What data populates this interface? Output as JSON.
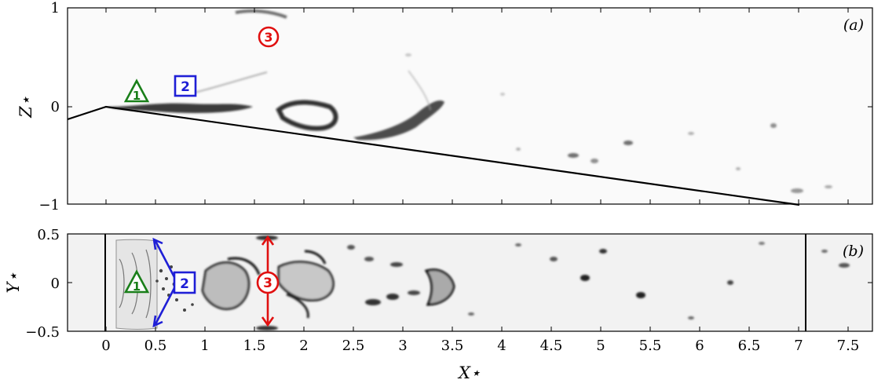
{
  "panel_a": {
    "tag": "(a)",
    "ylabel": "Z⋆",
    "yticks": [
      "1",
      "0",
      "−1"
    ]
  },
  "panel_b": {
    "tag": "(b)",
    "ylabel": "Y⋆",
    "yticks": [
      "0.5",
      "0",
      "−0.5"
    ]
  },
  "xlabel": "X⋆",
  "xticks": [
    "0",
    "0.5",
    "1",
    "1.5",
    "2",
    "2.5",
    "3",
    "3.5",
    "4",
    "4.5",
    "5",
    "5.5",
    "6",
    "6.5",
    "7",
    "7.5"
  ],
  "markers": {
    "triangle": "1",
    "square": "2",
    "circle": "3"
  },
  "colors": {
    "triangle": "#1a7f1a",
    "square": "#1f1fd6",
    "circle": "#e01010"
  }
}
